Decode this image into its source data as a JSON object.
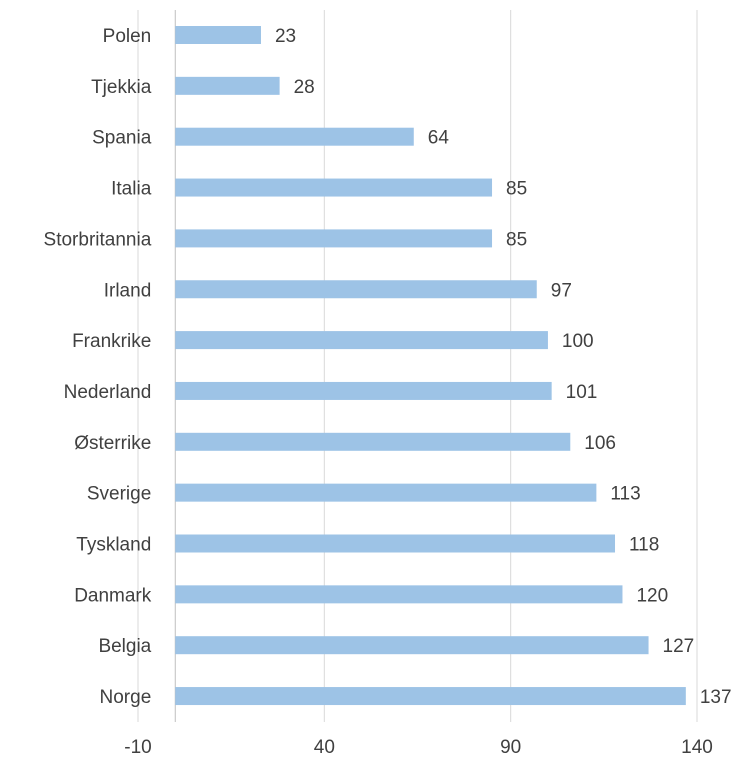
{
  "chart_data": {
    "type": "bar",
    "orientation": "horizontal",
    "categories": [
      "Polen",
      "Tjekkia",
      "Spania",
      "Italia",
      "Storbritannia",
      "Irland",
      "Frankrike",
      "Nederland",
      "Østerrike",
      "Sverige",
      "Tyskland",
      "Danmark",
      "Belgia",
      "Norge"
    ],
    "values": [
      23,
      28,
      64,
      85,
      85,
      97,
      100,
      101,
      106,
      113,
      118,
      120,
      127,
      137
    ],
    "value_labels": [
      "23",
      "28",
      "64",
      "85",
      "85",
      "97",
      "100",
      "101",
      "106",
      "113",
      "118",
      "120",
      "127",
      "137"
    ],
    "x_ticks": [
      -10,
      40,
      90,
      140
    ],
    "x_tick_labels": [
      "-10",
      "40",
      "90",
      "140"
    ],
    "xlim": [
      -10,
      140
    ],
    "grid": true,
    "bar_color": "#9dc3e6",
    "title": "",
    "xlabel": "",
    "ylabel": ""
  }
}
